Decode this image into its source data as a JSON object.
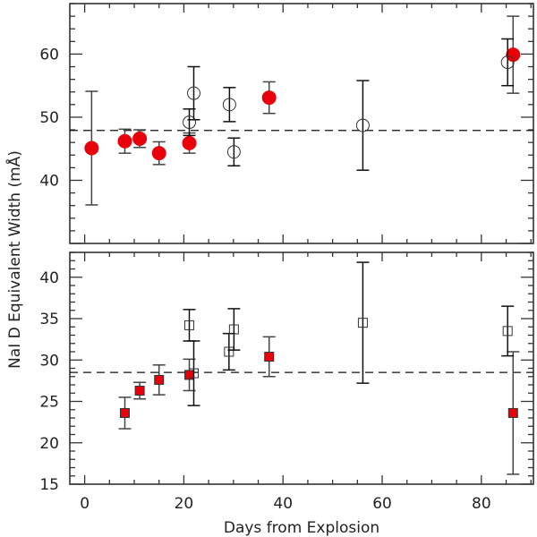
{
  "chart_data": {
    "type": "scatter",
    "xlabel": "Days from Explosion",
    "ylabel": "NaI D Equivalent Width (mÅ)",
    "xlim": [
      -3,
      90.5
    ],
    "x_ticks": [
      0,
      20,
      40,
      60,
      80
    ],
    "grid": false,
    "colors": {
      "filled": "#e8000b",
      "axis": "#333333"
    },
    "panels": [
      {
        "ylim": [
          30,
          68
        ],
        "y_ticks": [
          40,
          50,
          60
        ],
        "y_minor_step": 2,
        "reference_line": 47.9,
        "marker": "circle",
        "series": [
          {
            "style": "filled",
            "points": [
              {
                "x": 1.4,
                "y": 45.1,
                "yerr": 9.0
              },
              {
                "x": 8.1,
                "y": 46.2,
                "yerr": 1.9
              },
              {
                "x": 11.1,
                "y": 46.6,
                "yerr": 1.4
              },
              {
                "x": 15.0,
                "y": 44.3,
                "yerr": 1.8
              },
              {
                "x": 21.1,
                "y": 45.9,
                "yerr": 1.6
              },
              {
                "x": 37.2,
                "y": 53.1,
                "yerr": 2.5
              },
              {
                "x": 86.4,
                "y": 59.9,
                "yerr": 6.1
              }
            ]
          },
          {
            "style": "open",
            "points": [
              {
                "x": 21.1,
                "y": 49.2,
                "yerr": 2.1
              },
              {
                "x": 22.0,
                "y": 53.8,
                "yerr": 4.2
              },
              {
                "x": 29.2,
                "y": 52.0,
                "yerr": 2.7
              },
              {
                "x": 30.1,
                "y": 44.5,
                "yerr": 2.2
              },
              {
                "x": 56.1,
                "y": 48.7,
                "yerr": 7.1
              },
              {
                "x": 85.3,
                "y": 58.7,
                "yerr": 3.7
              }
            ]
          }
        ]
      },
      {
        "ylim": [
          15,
          43
        ],
        "y_ticks": [
          15,
          20,
          25,
          30,
          35,
          40
        ],
        "y_minor_step": 1,
        "reference_line": 28.5,
        "marker": "square",
        "series": [
          {
            "style": "filled",
            "points": [
              {
                "x": 8.1,
                "y": 23.6,
                "yerr": 1.9
              },
              {
                "x": 11.1,
                "y": 26.3,
                "yerr": 1.0
              },
              {
                "x": 15.0,
                "y": 27.6,
                "yerr": 1.8
              },
              {
                "x": 21.1,
                "y": 28.2,
                "yerr": 1.9
              },
              {
                "x": 37.2,
                "y": 30.4,
                "yerr": 2.4
              },
              {
                "x": 86.4,
                "y": 23.6,
                "yerr": 7.4
              }
            ]
          },
          {
            "style": "open",
            "points": [
              {
                "x": 21.1,
                "y": 34.2,
                "yerr": 1.9
              },
              {
                "x": 22.0,
                "y": 28.4,
                "yerr": 3.9
              },
              {
                "x": 29.1,
                "y": 31.0,
                "yerr": 2.2
              },
              {
                "x": 30.1,
                "y": 33.7,
                "yerr": 2.5
              },
              {
                "x": 56.1,
                "y": 34.5,
                "yerr": 7.3
              },
              {
                "x": 85.3,
                "y": 33.5,
                "yerr": 3.0
              }
            ]
          }
        ]
      }
    ]
  }
}
